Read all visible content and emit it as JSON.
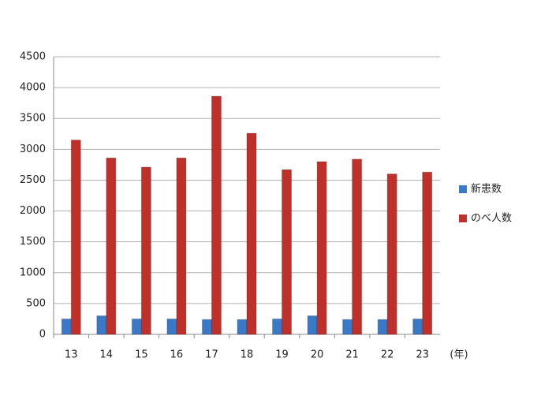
{
  "chart_data": {
    "type": "bar",
    "x_label": "(年)",
    "categories": [
      "13",
      "14",
      "15",
      "16",
      "17",
      "18",
      "19",
      "20",
      "21",
      "22",
      "23"
    ],
    "series": [
      {
        "name": "新患数",
        "color": "#3a78c8",
        "values": [
          250,
          300,
          250,
          250,
          240,
          240,
          250,
          300,
          240,
          240,
          250
        ]
      },
      {
        "name": "のべ人数",
        "color": "#c0302a",
        "values": [
          3150,
          2860,
          2710,
          2860,
          3860,
          3260,
          2670,
          2800,
          2840,
          2600,
          2630
        ]
      }
    ],
    "ylim": [
      0,
      4500
    ],
    "yticks": [
      0,
      500,
      1000,
      1500,
      2000,
      2500,
      3000,
      3500,
      4000,
      4500
    ],
    "grid": true,
    "legend": "right"
  }
}
